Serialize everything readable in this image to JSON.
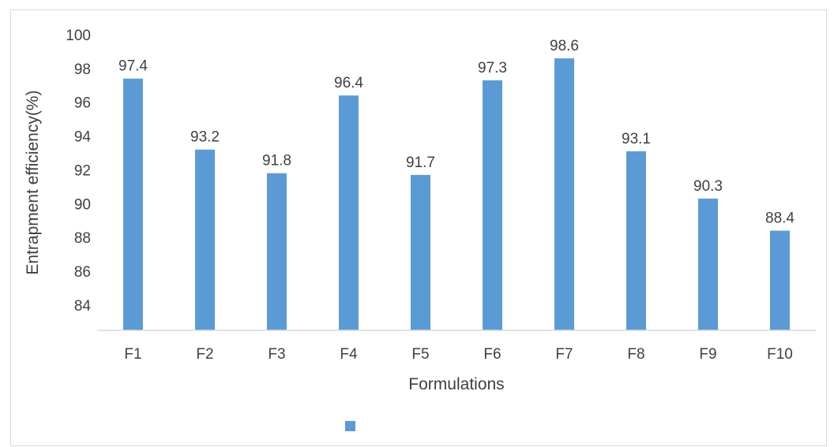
{
  "chart_data": {
    "type": "bar",
    "categories": [
      "F1",
      "F2",
      "F3",
      "F4",
      "F5",
      "F6",
      "F7",
      "F8",
      "F9",
      "F10"
    ],
    "values": [
      97.4,
      93.2,
      91.8,
      96.4,
      91.7,
      97.3,
      98.6,
      93.1,
      90.3,
      88.4
    ],
    "xlabel": "Formulations",
    "ylabel": "Entrapment efficiency(%)",
    "ylim": [
      82.5,
      100
    ],
    "yticks": [
      100,
      98,
      96,
      94,
      92,
      90,
      88,
      86,
      84
    ],
    "grid": false,
    "legend": "bottom-center",
    "colors": {
      "bar": "#5b9bd5",
      "axis": "#d9d9d9",
      "text": "#404040"
    }
  }
}
